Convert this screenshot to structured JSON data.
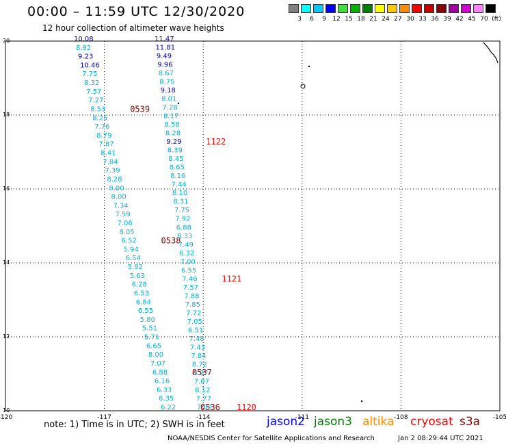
{
  "title": "00:00 – 11:59 UTC 12/30/2020",
  "subtitle": "12 hour collection of altimeter wave heights",
  "color_scale": {
    "colors": [
      "#808080",
      "#00ffff",
      "#00c8ff",
      "#0000ff",
      "#3ee03e",
      "#00b400",
      "#008000",
      "#ffff00",
      "#ffc800",
      "#ff8c00",
      "#ff0000",
      "#c80000",
      "#8b0000",
      "#a000a0",
      "#d000d0",
      "#ff80ff",
      "#000000"
    ],
    "labels": [
      "3",
      "6",
      "9",
      "12",
      "15",
      "18",
      "21",
      "24",
      "27",
      "30",
      "33",
      "36",
      "39",
      "42",
      "45",
      "70",
      "(ft)"
    ]
  },
  "axes": {
    "x_labels": [
      "-120",
      "-117",
      "-114",
      "-111",
      "-108",
      "-105"
    ],
    "y_labels": [
      "20",
      "18",
      "16",
      "14",
      "12",
      "10"
    ]
  },
  "track_colors": {
    "jason2": "#0000ff",
    "jason3": "#008000",
    "altika": "#ff8c00",
    "cryosat": "#ff0000",
    "s3a": "#8b0000"
  },
  "wave_colors": {
    "dark": "#0000b4",
    "light": "#00b4dc"
  },
  "tracks": [
    {
      "heights": [
        "10.08",
        "8.92",
        "9.23",
        "10.46",
        "7.75",
        "8.32",
        "7.57",
        "7.27",
        "8.53",
        "8.25",
        "7.76",
        "8.79",
        "7.87",
        "8.41",
        "7.84",
        "7.39",
        "8.28",
        "8.00",
        "8.00",
        "7.34",
        "7.59",
        "7.06",
        "8.05",
        "6.52",
        "5.94",
        "6.54",
        "5.92",
        "5.63",
        "6.28",
        "6.53",
        "6.84",
        "6.55",
        "5.80",
        "5.51",
        "5.71",
        "6.65",
        "8.00",
        "7.07",
        "6.88",
        "6.16",
        "6.33",
        "6.35",
        "6.22"
      ],
      "dark": [
        "10.08",
        "9.23",
        "10.46"
      ],
      "time_labels": [
        {
          "text": "0539",
          "row": 8
        },
        {
          "text": "0538",
          "row": 23
        },
        {
          "text": "0537",
          "row": 38
        },
        {
          "text": "0536",
          "row": 42
        }
      ],
      "time_color": "#8b0000"
    },
    {
      "heights": [
        "11.47",
        "11.81",
        "9.49",
        "9.96",
        "8.67",
        "8.75",
        "9.18",
        "8.01",
        "7.28",
        "8.17",
        "8.58",
        "8.28",
        "9.29",
        "8.39",
        "8.45",
        "8.65",
        "8.16",
        "7.44",
        "8.10",
        "8.31",
        "7.75",
        "7.92",
        "6.88",
        "8.33",
        "7.49",
        "6.32",
        "7.00",
        "6.55",
        "7.46",
        "7.57",
        "7.88",
        "7.85",
        "7.72",
        "7.05",
        "6.51",
        "7.48",
        "7.43",
        "7.84",
        "8.72",
        "8.27",
        "7.07",
        "8.12",
        "7.77",
        "7.02"
      ],
      "dark": [
        "11.47",
        "11.81",
        "9.49",
        "9.96",
        "9.18",
        "9.29"
      ],
      "time_labels": [
        {
          "text": "1122",
          "row": 12
        },
        {
          "text": "1121",
          "row": 28
        },
        {
          "text": "1120",
          "row": 43
        }
      ],
      "time_color": "#ff0000"
    }
  ],
  "footer": {
    "note": "note: 1) Time is in UTC; 2) SWH is in feet",
    "satellites": [
      {
        "name": "jason2",
        "color": "#0000ff"
      },
      {
        "name": "jason3",
        "color": "#008000"
      },
      {
        "name": "altika",
        "color": "#ff8c00"
      },
      {
        "name": "cryosat",
        "color": "#ff0000"
      },
      {
        "name": "s3a",
        "color": "#8b0000"
      }
    ],
    "credit": "NOAA/NESDIS Center for Satellite Applications and Research",
    "timestamp": "Jan  2 08:29:44 UTC 2021"
  }
}
